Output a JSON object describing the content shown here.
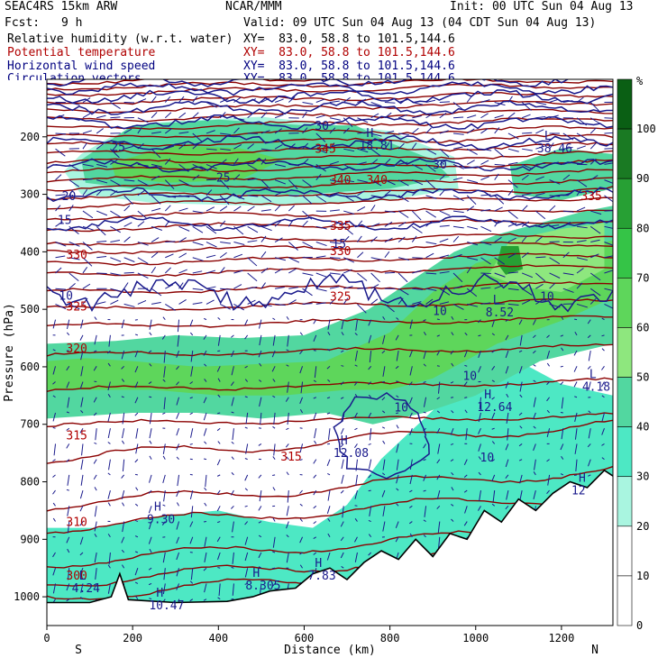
{
  "header": {
    "model": "SEAC4RS 15km ARW",
    "org": "NCAR/MMM",
    "init": "Init: 00 UTC Sun 04 Aug 13",
    "fcst_label": "Fcst:",
    "fcst_value": "9 h",
    "valid": "Valid: 09 UTC Sun 04 Aug 13 (04 CDT Sun 04 Aug 13)"
  },
  "fields": [
    {
      "name": "Relative humidity (w.r.t. water)",
      "xy": "XY=  83.0, 58.8 to 101.5,144.6",
      "color": "#000000"
    },
    {
      "name": "Potential temperature",
      "xy": "XY=  83.0, 58.8 to 101.5,144.6",
      "color": "#b00000"
    },
    {
      "name": "Horizontal wind speed",
      "xy": "XY=  83.0, 58.8 to 101.5,144.6",
      "color": "#000080"
    },
    {
      "name": "Circulation vectors",
      "xy": "XY=  83.0, 58.8 to 101.5,144.6",
      "color": "#000080"
    }
  ],
  "chart_data": {
    "type": "cross-section",
    "xlabel": "Distance (km)",
    "ylabel": "Pressure (hPa)",
    "xlim": [
      0,
      1320
    ],
    "ylim": [
      1050,
      100
    ],
    "x_ticks": [
      0,
      200,
      400,
      600,
      800,
      1000,
      1200
    ],
    "y_ticks": [
      200,
      300,
      400,
      500,
      600,
      700,
      800,
      900,
      1000
    ],
    "end_labels": {
      "left": "S",
      "right": "N"
    },
    "colorbar": {
      "unit": "%",
      "ticks": [
        100,
        90,
        80,
        70,
        60,
        50,
        40,
        30,
        20,
        10,
        0
      ],
      "colors": [
        "#0a5f14",
        "#1a7a23",
        "#27a034",
        "#35c447",
        "#5ed65b",
        "#8ee77e",
        "#52d7a0",
        "#4de8c4",
        "#a9f5e0",
        "#ffffff",
        "#ffffff"
      ]
    },
    "theta_labels": [
      {
        "x": 45,
        "p": 970,
        "text": "300"
      },
      {
        "x": 45,
        "p": 877,
        "text": "310"
      },
      {
        "x": 45,
        "p": 726,
        "text": "315"
      },
      {
        "x": 545,
        "p": 763,
        "text": "315"
      },
      {
        "x": 45,
        "p": 575,
        "text": "320"
      },
      {
        "x": 45,
        "p": 502,
        "text": "325"
      },
      {
        "x": 660,
        "p": 485,
        "text": "325"
      },
      {
        "x": 45,
        "p": 412,
        "text": "330"
      },
      {
        "x": 660,
        "p": 406,
        "text": "330"
      },
      {
        "x": 660,
        "p": 362,
        "text": "335"
      },
      {
        "x": 1245,
        "p": 310,
        "text": "335"
      },
      {
        "x": 660,
        "p": 282,
        "text": "340"
      },
      {
        "x": 745,
        "p": 282,
        "text": "340"
      },
      {
        "x": 625,
        "p": 228,
        "text": "345"
      }
    ],
    "speed_labels": [
      {
        "x": 35,
        "p": 310,
        "text": "20"
      },
      {
        "x": 25,
        "p": 352,
        "text": "15"
      },
      {
        "x": 665,
        "p": 393,
        "text": "15"
      },
      {
        "x": 28,
        "p": 483,
        "text": "10"
      },
      {
        "x": 900,
        "p": 510,
        "text": "10"
      },
      {
        "x": 1150,
        "p": 485,
        "text": "10"
      },
      {
        "x": 970,
        "p": 623,
        "text": "10"
      },
      {
        "x": 810,
        "p": 678,
        "text": "10"
      },
      {
        "x": 1010,
        "p": 765,
        "text": "10"
      },
      {
        "x": 150,
        "p": 225,
        "text": "25"
      },
      {
        "x": 395,
        "p": 278,
        "text": "25"
      },
      {
        "x": 625,
        "p": 188,
        "text": "30"
      },
      {
        "x": 900,
        "p": 255,
        "text": "30"
      }
    ],
    "extrema": [
      {
        "x": 1020,
        "p": 655,
        "symbol": "H",
        "value": "12.64"
      },
      {
        "x": 685,
        "p": 735,
        "symbol": "H",
        "value": "12.08"
      },
      {
        "x": 250,
        "p": 850,
        "symbol": "H",
        "value": "9.30"
      },
      {
        "x": 255,
        "p": 1000,
        "symbol": "H",
        "value": "10.47"
      },
      {
        "x": 480,
        "p": 965,
        "symbol": "H",
        "value": "8.305"
      },
      {
        "x": 625,
        "p": 948,
        "symbol": "H",
        "value": "7.83"
      },
      {
        "x": 1240,
        "p": 800,
        "symbol": "H",
        "value": "12"
      },
      {
        "x": 1040,
        "p": 490,
        "symbol": "L",
        "value": "8.52"
      },
      {
        "x": 1265,
        "p": 620,
        "symbol": "L",
        "value": "4.18"
      },
      {
        "x": 75,
        "p": 970,
        "symbol": "L",
        "value": "4.24"
      },
      {
        "x": 745,
        "p": 200,
        "symbol": "H",
        "value": "18.81"
      },
      {
        "x": 1160,
        "p": 205,
        "symbol": "L",
        "value": "38.46"
      }
    ]
  }
}
